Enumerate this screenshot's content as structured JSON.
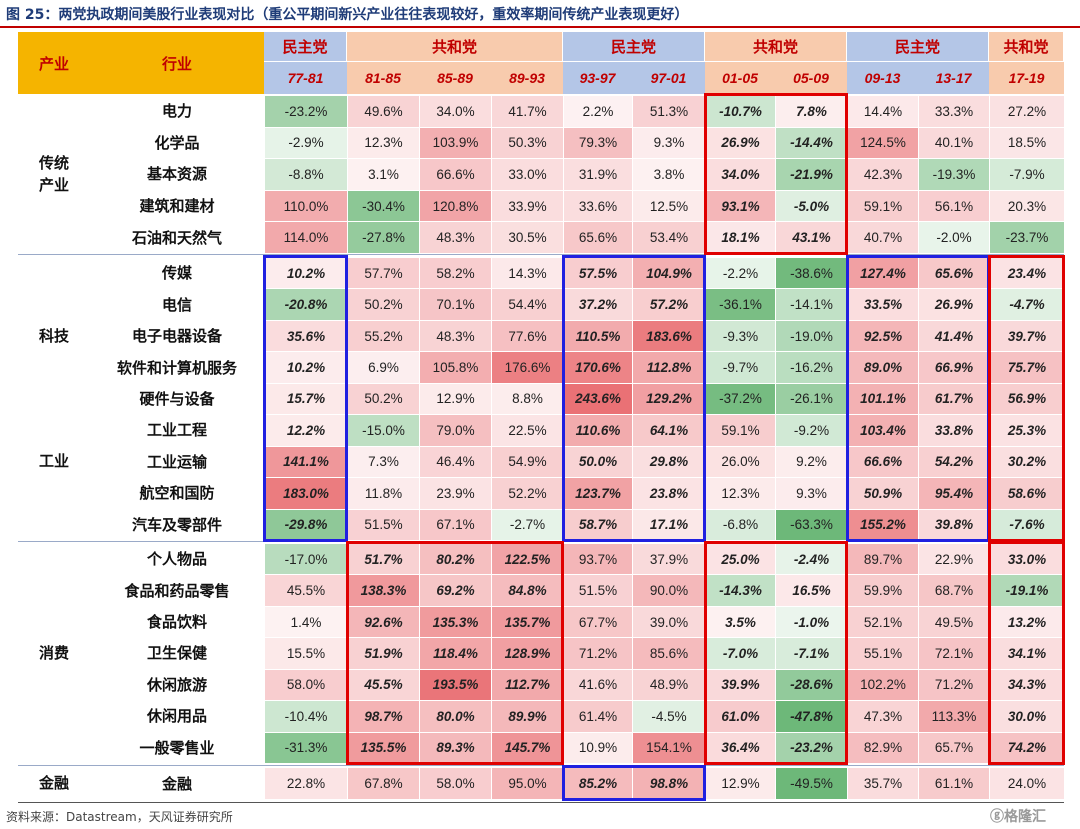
{
  "title": "图 25：两党执政期间美股行业表现对比（重公平期间新兴产业往往表现较好，重效率期间传统产业表现更好）",
  "source": "资料来源：Datastream，天风证券研究所",
  "watermark": "格隆汇",
  "colors": {
    "header_gold": "#f5b400",
    "dem_header": "#b4c6e7",
    "rep_header": "#f8cbad",
    "header_text": "#c00000",
    "pos_base": "#e8666a",
    "neg_base": "#5db06a",
    "blue_box": "#2020e0",
    "red_box": "#e00000"
  },
  "header": {
    "col_industry": "产业",
    "col_sector": "行业",
    "party_groups": [
      {
        "name": "民主党",
        "party": "dem",
        "span": 1
      },
      {
        "name": "共和党",
        "party": "rep",
        "span": 3
      },
      {
        "name": "民主党",
        "party": "dem",
        "span": 2
      },
      {
        "name": "共和党",
        "party": "rep",
        "span": 2
      },
      {
        "name": "民主党",
        "party": "dem",
        "span": 2
      },
      {
        "name": "共和党",
        "party": "rep",
        "span": 1
      }
    ]
  },
  "chart_data": {
    "type": "table",
    "title": "图 25：两党执政期间美股行业表现对比（重公平期间新兴产业往往表现较好，重效率期间传统产业表现更好）",
    "unit": "%",
    "periods": [
      "77-81",
      "81-85",
      "85-89",
      "89-93",
      "93-97",
      "97-01",
      "01-05",
      "05-09",
      "09-13",
      "13-17",
      "17-19"
    ],
    "groups": [
      {
        "name": "传统\n产业",
        "rows": [
          0,
          4
        ]
      },
      {
        "name": "科技",
        "rows": [
          5,
          9
        ]
      },
      {
        "name": "工业",
        "rows": [
          10,
          13
        ]
      },
      {
        "name": "消费",
        "rows": [
          14,
          20
        ]
      },
      {
        "name": "金融",
        "rows": [
          21,
          21
        ]
      }
    ],
    "rows": [
      {
        "name": "电力",
        "values": [
          -23.2,
          49.6,
          34.0,
          41.7,
          2.2,
          51.3,
          -10.7,
          7.8,
          14.4,
          33.3,
          27.2
        ]
      },
      {
        "name": "化学品",
        "values": [
          -2.9,
          12.3,
          103.9,
          50.3,
          79.3,
          9.3,
          26.9,
          -14.4,
          124.5,
          40.1,
          18.5
        ]
      },
      {
        "name": "基本资源",
        "values": [
          -8.8,
          3.1,
          66.6,
          33.0,
          31.9,
          3.8,
          34.0,
          -21.9,
          42.3,
          -19.3,
          -7.9
        ]
      },
      {
        "name": "建筑和建材",
        "values": [
          110.0,
          -30.4,
          120.8,
          33.9,
          33.6,
          12.5,
          93.1,
          -5.0,
          59.1,
          56.1,
          20.3
        ]
      },
      {
        "name": "石油和天然气",
        "values": [
          114.0,
          -27.8,
          48.3,
          30.5,
          65.6,
          53.4,
          18.1,
          43.1,
          40.7,
          -2.0,
          -23.7
        ]
      },
      {
        "name": "传媒",
        "values": [
          10.2,
          57.7,
          58.2,
          14.3,
          57.5,
          104.9,
          -2.2,
          -38.6,
          127.4,
          65.6,
          23.4
        ]
      },
      {
        "name": "电信",
        "values": [
          -20.8,
          50.2,
          70.1,
          54.4,
          37.2,
          57.2,
          -36.1,
          -14.1,
          33.5,
          26.9,
          -4.7
        ]
      },
      {
        "name": "电子电器设备",
        "values": [
          35.6,
          55.2,
          48.3,
          77.6,
          110.5,
          183.6,
          -9.3,
          -19.0,
          92.5,
          41.4,
          39.7
        ]
      },
      {
        "name": "软件和计算机服务",
        "values": [
          10.2,
          6.9,
          105.8,
          176.6,
          170.6,
          112.8,
          -9.7,
          -16.2,
          89.0,
          66.9,
          75.7
        ]
      },
      {
        "name": "硬件与设备",
        "values": [
          15.7,
          50.2,
          12.9,
          8.8,
          243.6,
          129.2,
          -37.2,
          -26.1,
          101.1,
          61.7,
          56.9
        ]
      },
      {
        "name": "工业工程",
        "values": [
          12.2,
          -15.0,
          79.0,
          22.5,
          110.6,
          64.1,
          59.1,
          -9.2,
          103.4,
          33.8,
          25.3
        ]
      },
      {
        "name": "工业运输",
        "values": [
          141.1,
          7.3,
          46.4,
          54.9,
          50.0,
          29.8,
          26.0,
          9.2,
          66.6,
          54.2,
          30.2
        ]
      },
      {
        "name": "航空和国防",
        "values": [
          183.0,
          11.8,
          23.9,
          52.2,
          123.7,
          23.8,
          12.3,
          9.3,
          50.9,
          95.4,
          58.6
        ]
      },
      {
        "name": "汽车及零部件",
        "values": [
          -29.8,
          51.5,
          67.1,
          -2.7,
          58.7,
          17.1,
          -6.8,
          -63.3,
          155.2,
          39.8,
          -7.6
        ]
      },
      {
        "name": "个人物品",
        "values": [
          -17.0,
          51.7,
          80.2,
          122.5,
          93.7,
          37.9,
          25.0,
          -2.4,
          89.7,
          22.9,
          33.0
        ]
      },
      {
        "name": "食品和药品零售",
        "values": [
          45.5,
          138.3,
          69.2,
          84.8,
          51.5,
          90.0,
          -14.3,
          16.5,
          59.9,
          68.7,
          -19.1
        ]
      },
      {
        "name": "食品饮料",
        "values": [
          1.4,
          92.6,
          135.3,
          135.7,
          67.7,
          39.0,
          3.5,
          -1.0,
          52.1,
          49.5,
          13.2
        ]
      },
      {
        "name": "卫生保健",
        "values": [
          15.5,
          51.9,
          118.4,
          128.9,
          71.2,
          85.6,
          -7.0,
          -7.1,
          55.1,
          72.1,
          34.1
        ]
      },
      {
        "name": "休闲旅游",
        "values": [
          58.0,
          45.5,
          193.5,
          112.7,
          41.6,
          48.9,
          39.9,
          -28.6,
          102.2,
          71.2,
          34.3
        ]
      },
      {
        "name": "休闲用品",
        "values": [
          -10.4,
          98.7,
          80.0,
          89.9,
          61.4,
          -4.5,
          61.0,
          -47.8,
          47.3,
          113.3,
          30.0
        ]
      },
      {
        "name": "一般零售业",
        "values": [
          -31.3,
          135.5,
          89.3,
          145.7,
          10.9,
          154.1,
          36.4,
          -23.2,
          82.9,
          65.7,
          74.2
        ]
      },
      {
        "name": "金融",
        "values": [
          22.8,
          67.8,
          58.0,
          95.0,
          85.2,
          98.8,
          12.9,
          -49.5,
          35.7,
          61.1,
          24.0
        ]
      }
    ],
    "highlight_boxes": [
      {
        "color": "red",
        "rows": [
          0,
          4
        ],
        "cols": [
          6,
          7
        ]
      },
      {
        "color": "blue",
        "rows": [
          5,
          13
        ],
        "cols": [
          0,
          0
        ]
      },
      {
        "color": "blue",
        "rows": [
          5,
          13
        ],
        "cols": [
          4,
          5
        ]
      },
      {
        "color": "blue",
        "rows": [
          5,
          13
        ],
        "cols": [
          8,
          9
        ]
      },
      {
        "color": "red",
        "rows": [
          5,
          13
        ],
        "cols": [
          10,
          10
        ]
      },
      {
        "color": "red",
        "rows": [
          14,
          20
        ],
        "cols": [
          1,
          3
        ]
      },
      {
        "color": "red",
        "rows": [
          14,
          20
        ],
        "cols": [
          6,
          7
        ]
      },
      {
        "color": "red",
        "rows": [
          14,
          20
        ],
        "cols": [
          10,
          10
        ]
      },
      {
        "color": "blue",
        "rows": [
          21,
          21
        ],
        "cols": [
          4,
          5
        ]
      }
    ]
  }
}
